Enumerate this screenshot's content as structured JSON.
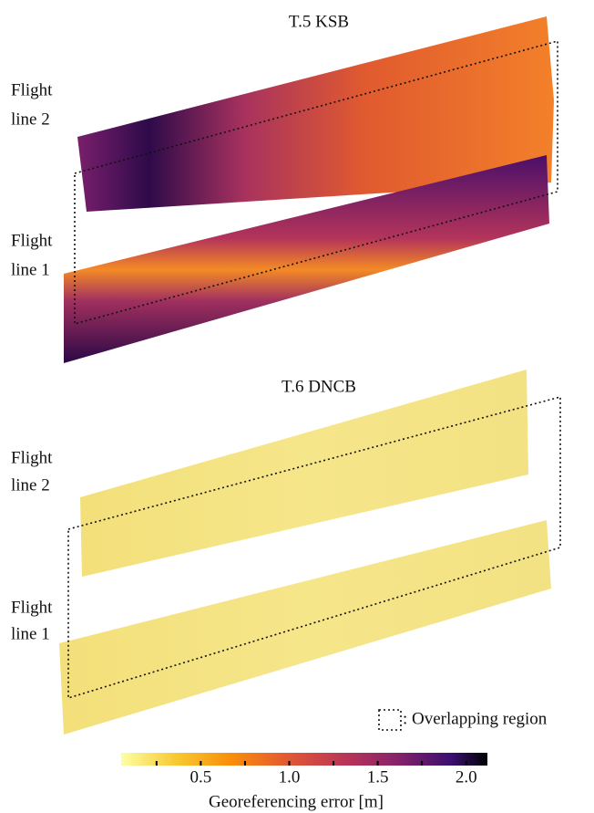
{
  "panels": [
    {
      "title": "T.5 KSB",
      "labels": [
        [
          "Flight",
          "line 2"
        ],
        [
          "Flight",
          "line 1"
        ]
      ]
    },
    {
      "title": "T.6 DNCB",
      "labels": [
        [
          "Flight",
          "line 2"
        ],
        [
          "Flight",
          "line 1"
        ]
      ]
    }
  ],
  "legend": ": Overlapping region",
  "colorbar": {
    "label": "Georeferencing error [m]",
    "lim": [
      0.05,
      2.12
    ],
    "ticks": [
      0.5,
      {
        "value": 1,
        "label": "1.0"
      },
      1.5,
      {
        "value": 2,
        "label": "2.0"
      }
    ],
    "minor_ticks": [
      0.25,
      0.75,
      1.25,
      1.75
    ]
  }
}
